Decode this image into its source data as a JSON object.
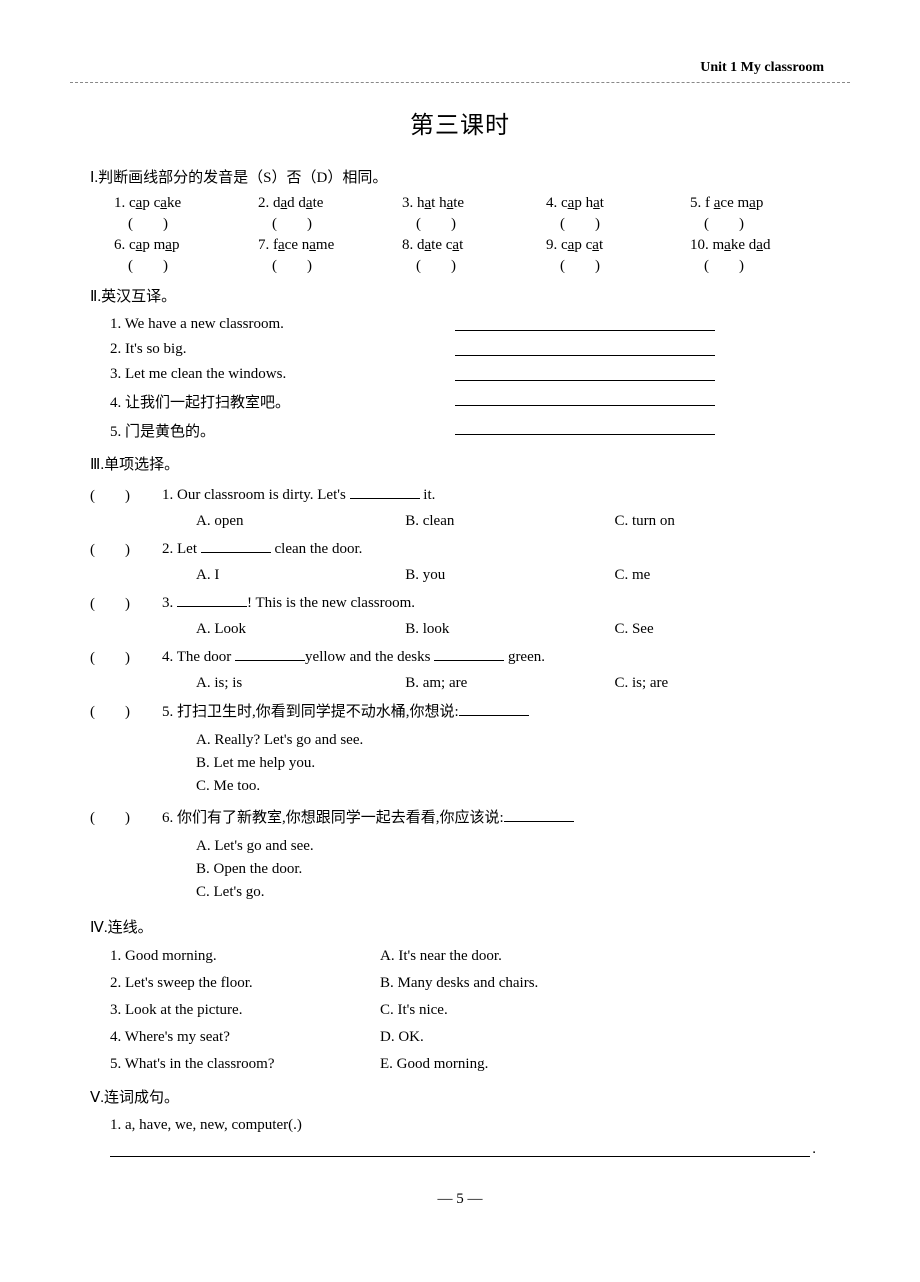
{
  "header": {
    "unit": "Unit 1  My classroom"
  },
  "title": "第三课时",
  "sections": {
    "s1": {
      "head": "Ⅰ.判断画线部分的发音是（S）否（D）相同。",
      "items": [
        {
          "n": "1.",
          "a": "c",
          "au": "a",
          "b": "p c",
          "bu": "a",
          "c": "ke"
        },
        {
          "n": "2.",
          "a": "d",
          "au": "a",
          "b": "d d",
          "bu": "a",
          "c": "te"
        },
        {
          "n": "3.",
          "a": "h",
          "au": "a",
          "b": "t h",
          "bu": "a",
          "c": "te"
        },
        {
          "n": "4.",
          "a": "c",
          "au": "a",
          "b": "p h",
          "bu": "a",
          "c": "t"
        },
        {
          "n": "5.",
          "a": "f ",
          "au": "a",
          "b": "ce m",
          "bu": "a",
          "c": "p"
        },
        {
          "n": "6.",
          "a": "c",
          "au": "a",
          "b": "p m",
          "bu": "a",
          "c": "p"
        },
        {
          "n": "7.",
          "a": "f",
          "au": "a",
          "b": "ce n",
          "bu": "a",
          "c": "me"
        },
        {
          "n": "8.",
          "a": "d",
          "au": "a",
          "b": "te c",
          "bu": "a",
          "c": "t"
        },
        {
          "n": "9.",
          "a": "c",
          "au": "a",
          "b": "p c",
          "bu": "a",
          "c": "t"
        },
        {
          "n": "10.",
          "a": "m",
          "au": "a",
          "b": "ke d",
          "bu": "a",
          "c": "d"
        }
      ],
      "paren": "(　　)"
    },
    "s2": {
      "head": "Ⅱ.英汉互译。",
      "items": [
        "1. We have a new classroom.",
        "2. It's so big.",
        "3. Let me clean the windows.",
        "4. 让我们一起打扫教室吧。",
        "5. 门是黄色的。"
      ]
    },
    "s3": {
      "head": "Ⅲ.单项选择。",
      "paren": "(　　)",
      "items": [
        {
          "num": "1.",
          "stem_a": "Our classroom is dirty.  Let's ",
          "stem_b": " it.",
          "opts": [
            "A. open",
            "B. clean",
            "C. turn on"
          ],
          "stack": false
        },
        {
          "num": "2.",
          "stem_a": "Let ",
          "stem_b": " clean the door.",
          "opts": [
            "A. I",
            "B. you",
            "C. me"
          ],
          "stack": false
        },
        {
          "num": "3.",
          "stem_a": "",
          "stem_b": "! This is the new classroom.",
          "opts": [
            "A. Look",
            "B. look",
            "C. See"
          ],
          "stack": false
        },
        {
          "num": "4.",
          "stem_a": "The door ",
          "stem_mid": "yellow and the desks ",
          "stem_b": " green.",
          "two_blanks": true,
          "opts": [
            "A. is; is",
            "B. am; are",
            "C. is; are"
          ],
          "stack": false
        },
        {
          "num": "5.",
          "stem_a": "打扫卫生时,你看到同学提不动水桶,你想说:",
          "trailing_blank": true,
          "opts": [
            "A. Really?  Let's go and see.",
            "B. Let me help you.",
            "C. Me too."
          ],
          "stack": true
        },
        {
          "num": "6.",
          "stem_a": "你们有了新教室,你想跟同学一起去看看,你应该说:",
          "trailing_blank": true,
          "opts": [
            "A. Let's go and see.",
            "B. Open the door.",
            "C. Let's go."
          ],
          "stack": true
        }
      ]
    },
    "s4": {
      "head": "Ⅳ.连线。",
      "left": [
        "1. Good morning.",
        "2. Let's sweep the floor.",
        "3. Look at the picture.",
        "4. Where's my seat?",
        "5. What's in the classroom?"
      ],
      "right": [
        "A. It's near the door.",
        "B. Many desks and chairs.",
        "C. It's nice.",
        "D. OK.",
        "E. Good morning."
      ]
    },
    "s5": {
      "head": "Ⅴ.连词成句。",
      "item": "1. a, have, we, new, computer(.)"
    }
  },
  "footer": {
    "page": "— 5 —"
  }
}
